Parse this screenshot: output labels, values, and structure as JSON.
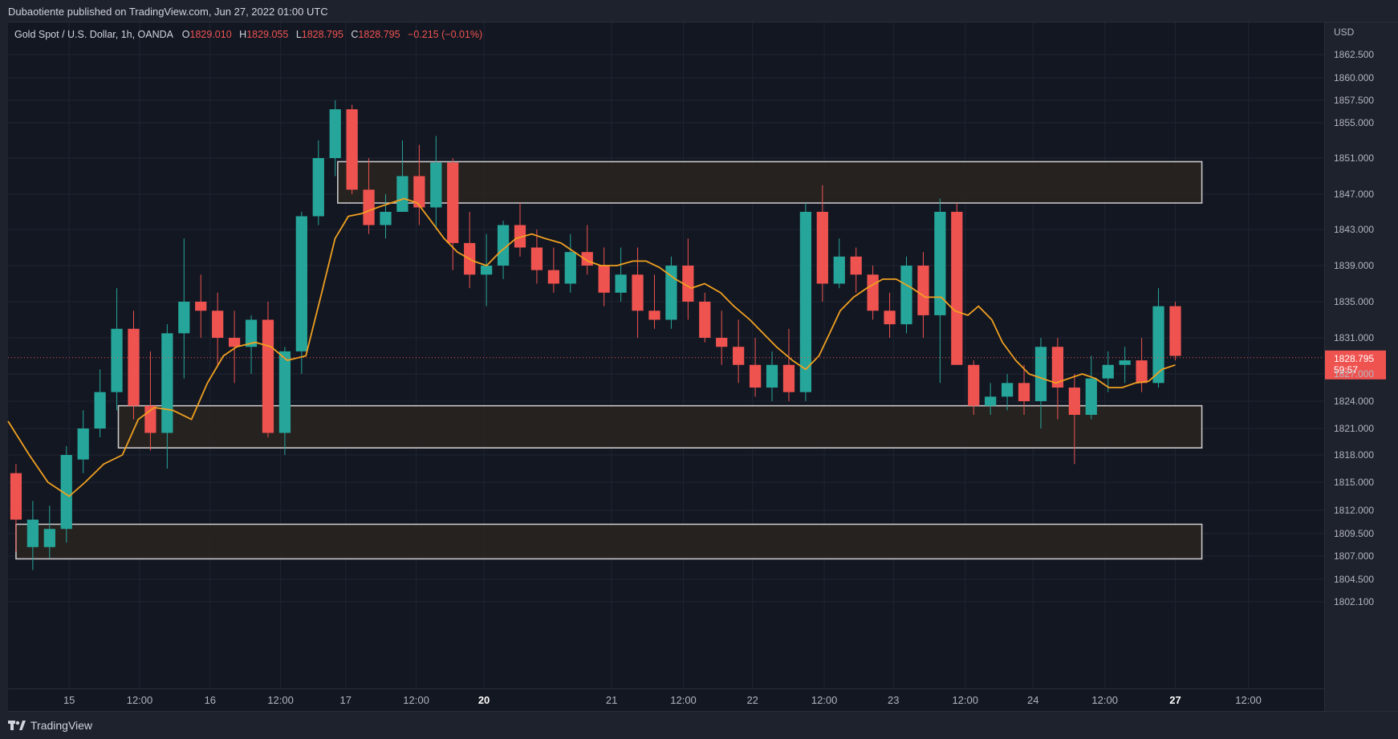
{
  "header": {
    "published_text": "Dubaotiente published on TradingView.com, Jun 27, 2022 01:00 UTC"
  },
  "legend": {
    "symbol": "Gold Spot / U.S. Dollar, 1h, OANDA",
    "o_label": "O",
    "o_value": "1829.010",
    "h_label": "H",
    "h_value": "1829.055",
    "l_label": "L",
    "l_value": "1828.795",
    "c_label": "C",
    "c_value": "1828.795",
    "change": "−0.215 (−0.01%)"
  },
  "footer": {
    "brand": "TradingView"
  },
  "colors": {
    "up": "#26a69a",
    "down": "#ef5350",
    "ma": "#f0a020",
    "zone_fill": "#2a2520",
    "zone_stroke": "#c8c8c8",
    "background": "#131722",
    "grid": "#1f2433"
  },
  "chart_data": {
    "type": "candlestick",
    "currency": "USD",
    "ylim": [
      1799.5,
      1866.0
    ],
    "xlim": [
      -0.3,
      49.2
    ],
    "y_ticks": [
      {
        "value": 1862.5,
        "label": "1862.500"
      },
      {
        "value": 1860.0,
        "label": "1860.000"
      },
      {
        "value": 1857.5,
        "label": "1857.500"
      },
      {
        "value": 1855.0,
        "label": "1855.000"
      },
      {
        "value": 1851.0,
        "label": "1851.000"
      },
      {
        "value": 1847.0,
        "label": "1847.000"
      },
      {
        "value": 1843.0,
        "label": "1843.000"
      },
      {
        "value": 1839.0,
        "label": "1839.000"
      },
      {
        "value": 1835.0,
        "label": "1835.000"
      },
      {
        "value": 1831.0,
        "label": "1831.000"
      },
      {
        "value": 1827.0,
        "label": "1827.000"
      },
      {
        "value": 1824.0,
        "label": "1824.000"
      },
      {
        "value": 1821.0,
        "label": "1821.000"
      },
      {
        "value": 1818.0,
        "label": "1818.000"
      },
      {
        "value": 1815.0,
        "label": "1815.000"
      },
      {
        "value": 1812.0,
        "label": "1812.000"
      },
      {
        "value": 1809.5,
        "label": "1809.500"
      },
      {
        "value": 1807.0,
        "label": "1807.000"
      },
      {
        "value": 1804.5,
        "label": "1804.500"
      },
      {
        "value": 1802.1,
        "label": "1802.100"
      }
    ],
    "x_ticks": [
      {
        "t": 2.0,
        "label": "15",
        "bold": false
      },
      {
        "t": 4.65,
        "label": "12:00",
        "bold": false
      },
      {
        "t": 7.3,
        "label": "16",
        "bold": false
      },
      {
        "t": 9.95,
        "label": "12:00",
        "bold": false
      },
      {
        "t": 12.4,
        "label": "17",
        "bold": false
      },
      {
        "t": 15.05,
        "label": "12:00",
        "bold": false
      },
      {
        "t": 17.6,
        "label": "20",
        "bold": true
      },
      {
        "t": 22.4,
        "label": "21",
        "bold": false
      },
      {
        "t": 25.1,
        "label": "12:00",
        "bold": false
      },
      {
        "t": 27.7,
        "label": "22",
        "bold": false
      },
      {
        "t": 30.4,
        "label": "12:00",
        "bold": false
      },
      {
        "t": 33.0,
        "label": "23",
        "bold": false
      },
      {
        "t": 35.7,
        "label": "12:00",
        "bold": false
      },
      {
        "t": 38.25,
        "label": "24",
        "bold": false
      },
      {
        "t": 40.95,
        "label": "12:00",
        "bold": false
      },
      {
        "t": 43.6,
        "label": "27",
        "bold": true
      },
      {
        "t": 46.35,
        "label": "12:00",
        "bold": false
      }
    ],
    "candles": [
      {
        "o": 1816.0,
        "h": 1817.0,
        "l": 1807.5,
        "c": 1811.0
      },
      {
        "o": 1808.0,
        "h": 1813.0,
        "l": 1805.5,
        "c": 1811.0
      },
      {
        "o": 1808.0,
        "h": 1812.5,
        "l": 1806.8,
        "c": 1810.0
      },
      {
        "o": 1810.0,
        "h": 1819.0,
        "l": 1808.5,
        "c": 1818.0
      },
      {
        "o": 1817.5,
        "h": 1823.0,
        "l": 1816.0,
        "c": 1821.0
      },
      {
        "o": 1821.0,
        "h": 1827.5,
        "l": 1820.0,
        "c": 1825.0
      },
      {
        "o": 1825.0,
        "h": 1836.5,
        "l": 1823.0,
        "c": 1832.0
      },
      {
        "o": 1832.0,
        "h": 1834.0,
        "l": 1822.0,
        "c": 1823.5
      },
      {
        "o": 1823.5,
        "h": 1829.5,
        "l": 1818.5,
        "c": 1820.5
      },
      {
        "o": 1820.5,
        "h": 1832.5,
        "l": 1816.5,
        "c": 1831.5
      },
      {
        "o": 1831.5,
        "h": 1842.0,
        "l": 1826.5,
        "c": 1835.0
      },
      {
        "o": 1835.0,
        "h": 1838.0,
        "l": 1831.0,
        "c": 1834.0
      },
      {
        "o": 1834.0,
        "h": 1836.0,
        "l": 1828.0,
        "c": 1831.0
      },
      {
        "o": 1831.0,
        "h": 1834.0,
        "l": 1826.0,
        "c": 1830.0
      },
      {
        "o": 1830.0,
        "h": 1833.5,
        "l": 1827.0,
        "c": 1833.0
      },
      {
        "o": 1833.0,
        "h": 1835.0,
        "l": 1820.0,
        "c": 1820.5
      },
      {
        "o": 1820.5,
        "h": 1830.0,
        "l": 1818.0,
        "c": 1829.5
      },
      {
        "o": 1829.5,
        "h": 1845.0,
        "l": 1827.0,
        "c": 1844.5
      },
      {
        "o": 1844.5,
        "h": 1853.0,
        "l": 1843.5,
        "c": 1851.0
      },
      {
        "o": 1851.0,
        "h": 1857.5,
        "l": 1849.0,
        "c": 1856.5
      },
      {
        "o": 1856.5,
        "h": 1857.0,
        "l": 1847.0,
        "c": 1847.5
      },
      {
        "o": 1847.5,
        "h": 1851.0,
        "l": 1842.5,
        "c": 1843.5
      },
      {
        "o": 1843.5,
        "h": 1847.0,
        "l": 1842.0,
        "c": 1845.0
      },
      {
        "o": 1845.0,
        "h": 1853.0,
        "l": 1845.0,
        "c": 1849.0
      },
      {
        "o": 1849.0,
        "h": 1852.5,
        "l": 1843.5,
        "c": 1845.5
      },
      {
        "o": 1845.5,
        "h": 1853.5,
        "l": 1843.0,
        "c": 1850.5
      },
      {
        "o": 1850.5,
        "h": 1851.0,
        "l": 1838.5,
        "c": 1841.5
      },
      {
        "o": 1841.5,
        "h": 1845.0,
        "l": 1836.5,
        "c": 1838.0
      },
      {
        "o": 1838.0,
        "h": 1842.5,
        "l": 1834.5,
        "c": 1839.0
      },
      {
        "o": 1839.0,
        "h": 1844.0,
        "l": 1837.5,
        "c": 1843.5
      },
      {
        "o": 1843.5,
        "h": 1846.0,
        "l": 1840.0,
        "c": 1841.0
      },
      {
        "o": 1841.0,
        "h": 1843.0,
        "l": 1837.0,
        "c": 1838.5
      },
      {
        "o": 1838.5,
        "h": 1841.0,
        "l": 1836.0,
        "c": 1837.0
      },
      {
        "o": 1837.0,
        "h": 1842.5,
        "l": 1836.0,
        "c": 1840.5
      },
      {
        "o": 1840.5,
        "h": 1843.5,
        "l": 1838.0,
        "c": 1839.0
      },
      {
        "o": 1839.0,
        "h": 1841.0,
        "l": 1834.5,
        "c": 1836.0
      },
      {
        "o": 1836.0,
        "h": 1841.0,
        "l": 1835.0,
        "c": 1838.0
      },
      {
        "o": 1838.0,
        "h": 1841.0,
        "l": 1831.0,
        "c": 1834.0
      },
      {
        "o": 1834.0,
        "h": 1838.0,
        "l": 1832.0,
        "c": 1833.0
      },
      {
        "o": 1833.0,
        "h": 1840.0,
        "l": 1832.0,
        "c": 1839.0
      },
      {
        "o": 1839.0,
        "h": 1842.0,
        "l": 1833.0,
        "c": 1835.0
      },
      {
        "o": 1835.0,
        "h": 1836.0,
        "l": 1830.5,
        "c": 1831.0
      },
      {
        "o": 1831.0,
        "h": 1834.0,
        "l": 1828.0,
        "c": 1830.0
      },
      {
        "o": 1830.0,
        "h": 1833.0,
        "l": 1826.0,
        "c": 1828.0
      },
      {
        "o": 1828.0,
        "h": 1831.0,
        "l": 1824.5,
        "c": 1825.5
      },
      {
        "o": 1825.5,
        "h": 1829.5,
        "l": 1824.0,
        "c": 1828.0
      },
      {
        "o": 1828.0,
        "h": 1832.0,
        "l": 1824.0,
        "c": 1825.0
      },
      {
        "o": 1825.0,
        "h": 1846.0,
        "l": 1824.0,
        "c": 1845.0
      },
      {
        "o": 1845.0,
        "h": 1848.0,
        "l": 1835.0,
        "c": 1837.0
      },
      {
        "o": 1837.0,
        "h": 1842.0,
        "l": 1836.5,
        "c": 1840.0
      }
    ],
    "candles_tail": [
      {
        "o": 1840.0,
        "h": 1841.0,
        "l": 1836.0,
        "c": 1838.0
      },
      {
        "o": 1838.0,
        "h": 1839.0,
        "l": 1833.0,
        "c": 1834.0
      },
      {
        "o": 1834.0,
        "h": 1836.0,
        "l": 1831.0,
        "c": 1832.5
      },
      {
        "o": 1832.5,
        "h": 1840.0,
        "l": 1831.5,
        "c": 1839.0
      },
      {
        "o": 1839.0,
        "h": 1840.5,
        "l": 1831.0,
        "c": 1833.5
      },
      {
        "o": 1833.5,
        "h": 1846.5,
        "l": 1826.0,
        "c": 1845.0
      },
      {
        "o": 1845.0,
        "h": 1846.0,
        "l": 1828.0,
        "c": 1828.0
      },
      {
        "o": 1828.0,
        "h": 1828.5,
        "l": 1822.5,
        "c": 1823.5
      },
      {
        "o": 1823.5,
        "h": 1826.0,
        "l": 1822.5,
        "c": 1824.5
      },
      {
        "o": 1824.5,
        "h": 1827.0,
        "l": 1823.0,
        "c": 1826.0
      },
      {
        "o": 1826.0,
        "h": 1828.0,
        "l": 1822.5,
        "c": 1824.0
      },
      {
        "o": 1824.0,
        "h": 1831.0,
        "l": 1821.0,
        "c": 1830.0
      },
      {
        "o": 1830.0,
        "h": 1831.0,
        "l": 1822.0,
        "c": 1825.5
      },
      {
        "o": 1825.5,
        "h": 1827.0,
        "l": 1817.0,
        "c": 1822.5
      },
      {
        "o": 1822.5,
        "h": 1829.0,
        "l": 1822.0,
        "c": 1826.5
      },
      {
        "o": 1826.5,
        "h": 1829.5,
        "l": 1825.0,
        "c": 1828.0
      },
      {
        "o": 1828.0,
        "h": 1830.0,
        "l": 1826.0,
        "c": 1828.5
      },
      {
        "o": 1828.5,
        "h": 1831.0,
        "l": 1825.0,
        "c": 1826.0
      },
      {
        "o": 1826.0,
        "h": 1836.5,
        "l": 1825.5,
        "c": 1834.5
      },
      {
        "o": 1834.5,
        "h": 1835.0,
        "l": 1828.5,
        "c": 1829.0
      }
    ],
    "moving_average": [
      [
        -0.3,
        1821.8
      ],
      [
        0.5,
        1818.0
      ],
      [
        1.2,
        1815.0
      ],
      [
        2.0,
        1813.5
      ],
      [
        2.6,
        1815.0
      ],
      [
        3.3,
        1817.0
      ],
      [
        4.0,
        1818.0
      ],
      [
        4.6,
        1822.0
      ],
      [
        5.2,
        1823.3
      ],
      [
        5.9,
        1823.0
      ],
      [
        6.6,
        1822.0
      ],
      [
        7.2,
        1826.0
      ],
      [
        7.8,
        1829.0
      ],
      [
        8.3,
        1830.0
      ],
      [
        9.0,
        1830.5
      ],
      [
        9.6,
        1830.0
      ],
      [
        10.2,
        1828.5
      ],
      [
        10.9,
        1829.0
      ],
      [
        11.5,
        1836.0
      ],
      [
        12.0,
        1842.0
      ],
      [
        12.5,
        1844.5
      ],
      [
        13.0,
        1844.8
      ],
      [
        13.6,
        1845.5
      ],
      [
        14.1,
        1846.0
      ],
      [
        14.6,
        1846.5
      ],
      [
        15.1,
        1846.0
      ],
      [
        15.6,
        1844.0
      ],
      [
        16.1,
        1842.0
      ],
      [
        16.6,
        1840.5
      ],
      [
        17.2,
        1839.5
      ],
      [
        17.7,
        1839.0
      ],
      [
        18.2,
        1840.5
      ],
      [
        18.8,
        1842.0
      ],
      [
        19.4,
        1842.5
      ],
      [
        19.9,
        1842.0
      ],
      [
        20.5,
        1841.5
      ],
      [
        21.0,
        1840.5
      ],
      [
        21.5,
        1839.5
      ],
      [
        22.0,
        1839.0
      ],
      [
        22.6,
        1839.0
      ],
      [
        23.2,
        1839.5
      ],
      [
        23.7,
        1839.5
      ],
      [
        24.2,
        1838.8
      ],
      [
        24.8,
        1837.5
      ],
      [
        25.4,
        1836.5
      ],
      [
        25.9,
        1837.0
      ],
      [
        26.5,
        1836.0
      ],
      [
        27.0,
        1834.5
      ],
      [
        27.6,
        1833.0
      ],
      [
        28.1,
        1831.5
      ],
      [
        28.6,
        1830.0
      ],
      [
        29.2,
        1828.5
      ],
      [
        29.7,
        1827.5
      ],
      [
        30.2,
        1829.0
      ],
      [
        30.6,
        1831.5
      ],
      [
        31.0,
        1834.0
      ],
      [
        31.5,
        1835.5
      ],
      [
        32.0,
        1836.5
      ],
      [
        32.6,
        1837.5
      ],
      [
        33.1,
        1837.5
      ],
      [
        33.7,
        1836.5
      ],
      [
        34.2,
        1835.5
      ],
      [
        34.8,
        1835.5
      ],
      [
        35.3,
        1834.0
      ],
      [
        35.8,
        1833.5
      ],
      [
        36.2,
        1834.5
      ],
      [
        36.7,
        1833.0
      ],
      [
        37.1,
        1830.5
      ],
      [
        37.6,
        1828.5
      ],
      [
        38.1,
        1827.0
      ],
      [
        38.6,
        1826.5
      ],
      [
        39.1,
        1826.0
      ],
      [
        39.6,
        1826.5
      ],
      [
        40.1,
        1827.0
      ],
      [
        40.6,
        1826.5
      ],
      [
        41.1,
        1825.5
      ],
      [
        41.6,
        1825.5
      ],
      [
        42.1,
        1826.0
      ],
      [
        42.6,
        1826.2
      ],
      [
        43.1,
        1827.5
      ],
      [
        43.6,
        1828.0
      ]
    ],
    "zones": [
      {
        "t0": 12.1,
        "t1": 44.6,
        "top": 1850.6,
        "bottom": 1846.0
      },
      {
        "t0": 3.85,
        "t1": 44.6,
        "top": 1823.5,
        "bottom": 1818.8
      },
      {
        "t0": 0.0,
        "t1": 44.6,
        "top": 1810.5,
        "bottom": 1806.7
      }
    ],
    "current_price": {
      "value": 1828.795,
      "label": "1828.795",
      "timer": "59:57"
    }
  }
}
